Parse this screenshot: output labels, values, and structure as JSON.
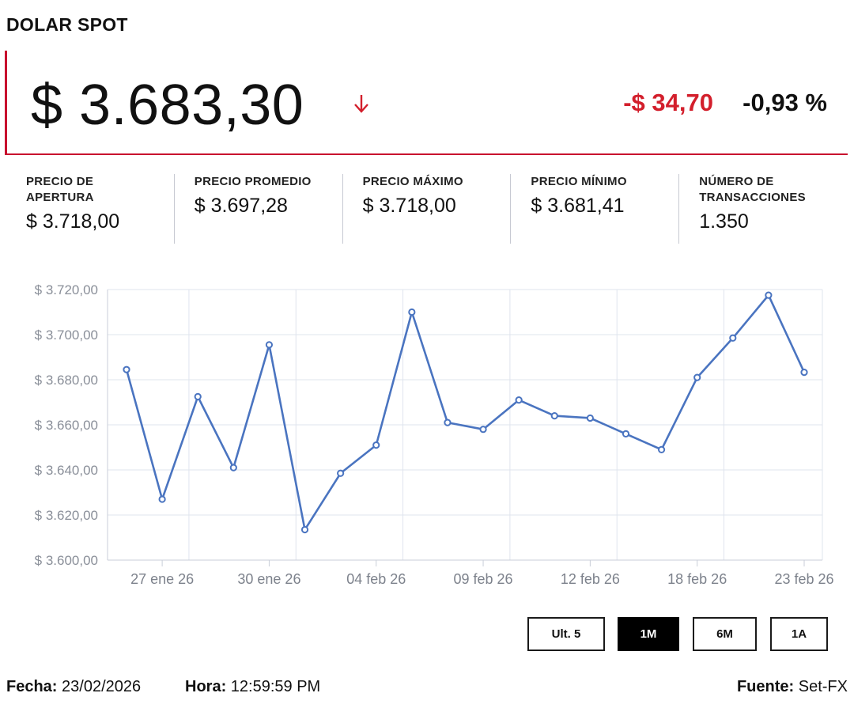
{
  "header": {
    "title": "DOLAR SPOT",
    "price": "$ 3.683,30",
    "change": "-$ 34,70",
    "change_pct": "-0,93 %",
    "accent_color": "#c8102e",
    "down_color": "#d31f2c",
    "arrow_icon": "arrow-down-icon"
  },
  "stats": [
    {
      "label": "PRECIO DE APERTURA",
      "value": "$ 3.718,00"
    },
    {
      "label": "PRECIO PROMEDIO",
      "value": "$ 3.697,28"
    },
    {
      "label": "PRECIO MÁXIMO",
      "value": "$ 3.718,00"
    },
    {
      "label": "PRECIO MÍNIMO",
      "value": "$ 3.681,41"
    },
    {
      "label": "NÚMERO DE TRANSACCIONES",
      "value": "1.350"
    }
  ],
  "chart_data": {
    "type": "line",
    "series": [
      {
        "color": "#4a74c0",
        "values": [
          3684.5,
          3627.0,
          3672.5,
          3641.0,
          3695.5,
          3613.5,
          3638.5,
          3651.0,
          3710.0,
          3661.0,
          3658.0,
          3671.0,
          3664.0,
          3663.0,
          3656.0,
          3649.0,
          3681.0,
          3698.5,
          3717.5,
          3683.3
        ]
      }
    ],
    "x_tick_labels": [
      "27 ene 26",
      "30 ene 26",
      "04 feb 26",
      "09 feb 26",
      "12 feb 26",
      "18 feb 26",
      "23 feb 26"
    ],
    "x_tick_indices": [
      1,
      4,
      7,
      10,
      13,
      16,
      19
    ],
    "y_tick_labels": [
      "$ 3.720,00",
      "$ 3.700,00",
      "$ 3.680,00",
      "$ 3.660,00",
      "$ 3.640,00",
      "$ 3.620,00",
      "$ 3.600,00"
    ],
    "y_ticks": [
      3720,
      3700,
      3680,
      3660,
      3640,
      3620,
      3600
    ],
    "ylim": [
      3600,
      3720
    ],
    "grid": true
  },
  "ranges": [
    {
      "label": "Ult. 5",
      "active": false
    },
    {
      "label": "1M",
      "active": true
    },
    {
      "label": "6M",
      "active": false
    },
    {
      "label": "1A",
      "active": false
    }
  ],
  "footer": {
    "date_label": "Fecha:",
    "date_value": "23/02/2026",
    "time_label": "Hora:",
    "time_value": "12:59:59 PM",
    "source_label": "Fuente:",
    "source_value": "Set-FX"
  }
}
